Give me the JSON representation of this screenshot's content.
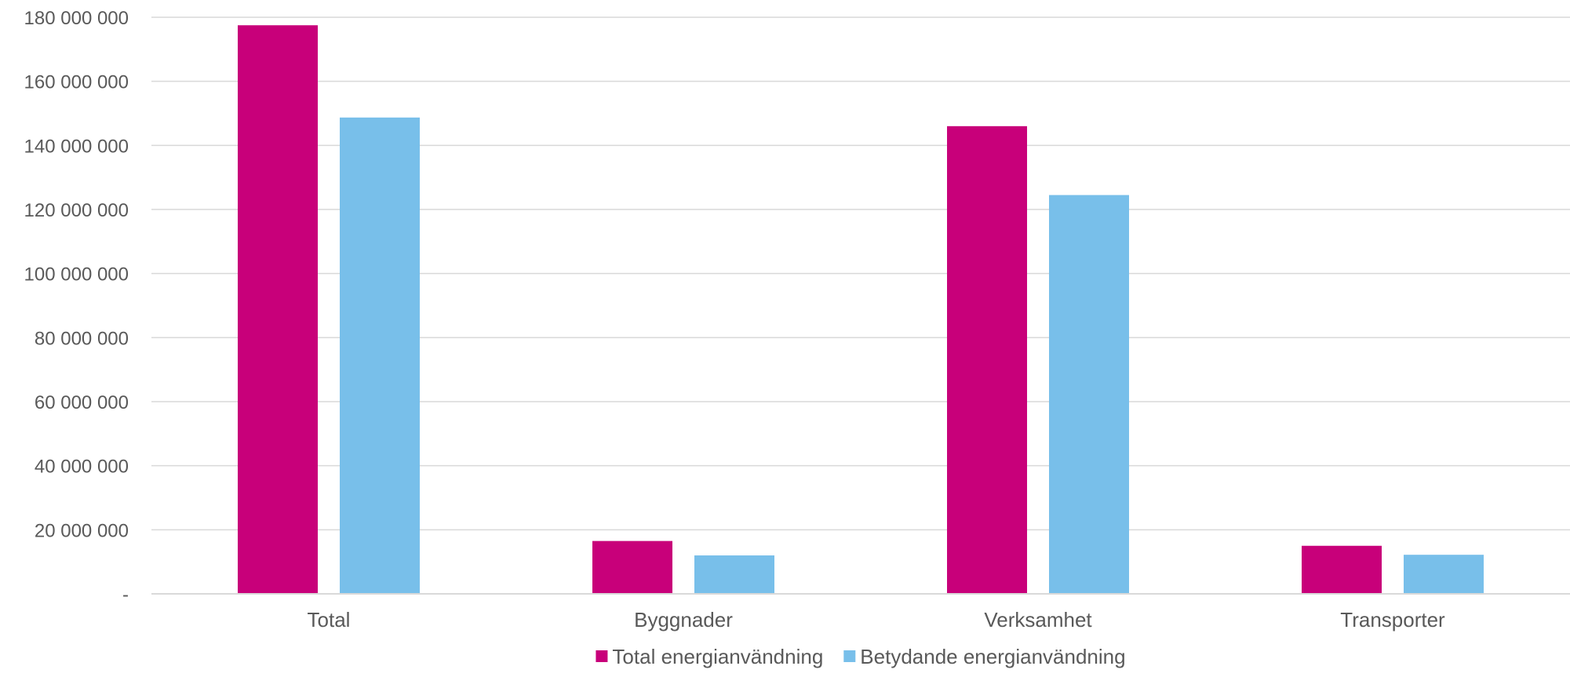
{
  "chart_data": {
    "type": "bar",
    "title": "",
    "xlabel": "",
    "ylabel": "",
    "categories": [
      "Total",
      "Byggnader",
      "Verksamhet",
      "Transporter"
    ],
    "series": [
      {
        "name": "Total energianvändning",
        "color": "#c8007a",
        "values": [
          177500000,
          16500000,
          146000000,
          15000000
        ]
      },
      {
        "name": "Betydande energianvändning",
        "color": "#78bfea",
        "values": [
          148700000,
          12000000,
          124500000,
          12200000
        ]
      }
    ],
    "ylim": [
      0,
      180000000
    ],
    "y_ticks": [
      {
        "value": 0,
        "label": "-"
      },
      {
        "value": 20000000,
        "label": "20 000 000"
      },
      {
        "value": 40000000,
        "label": "40 000 000"
      },
      {
        "value": 60000000,
        "label": "60 000 000"
      },
      {
        "value": 80000000,
        "label": "80 000 000"
      },
      {
        "value": 100000000,
        "label": "100 000 000"
      },
      {
        "value": 120000000,
        "label": "120 000 000"
      },
      {
        "value": 140000000,
        "label": "140 000 000"
      },
      {
        "value": 160000000,
        "label": "160 000 000"
      },
      {
        "value": 180000000,
        "label": "180 000 000"
      }
    ],
    "grid": true,
    "legend_position": "bottom"
  }
}
